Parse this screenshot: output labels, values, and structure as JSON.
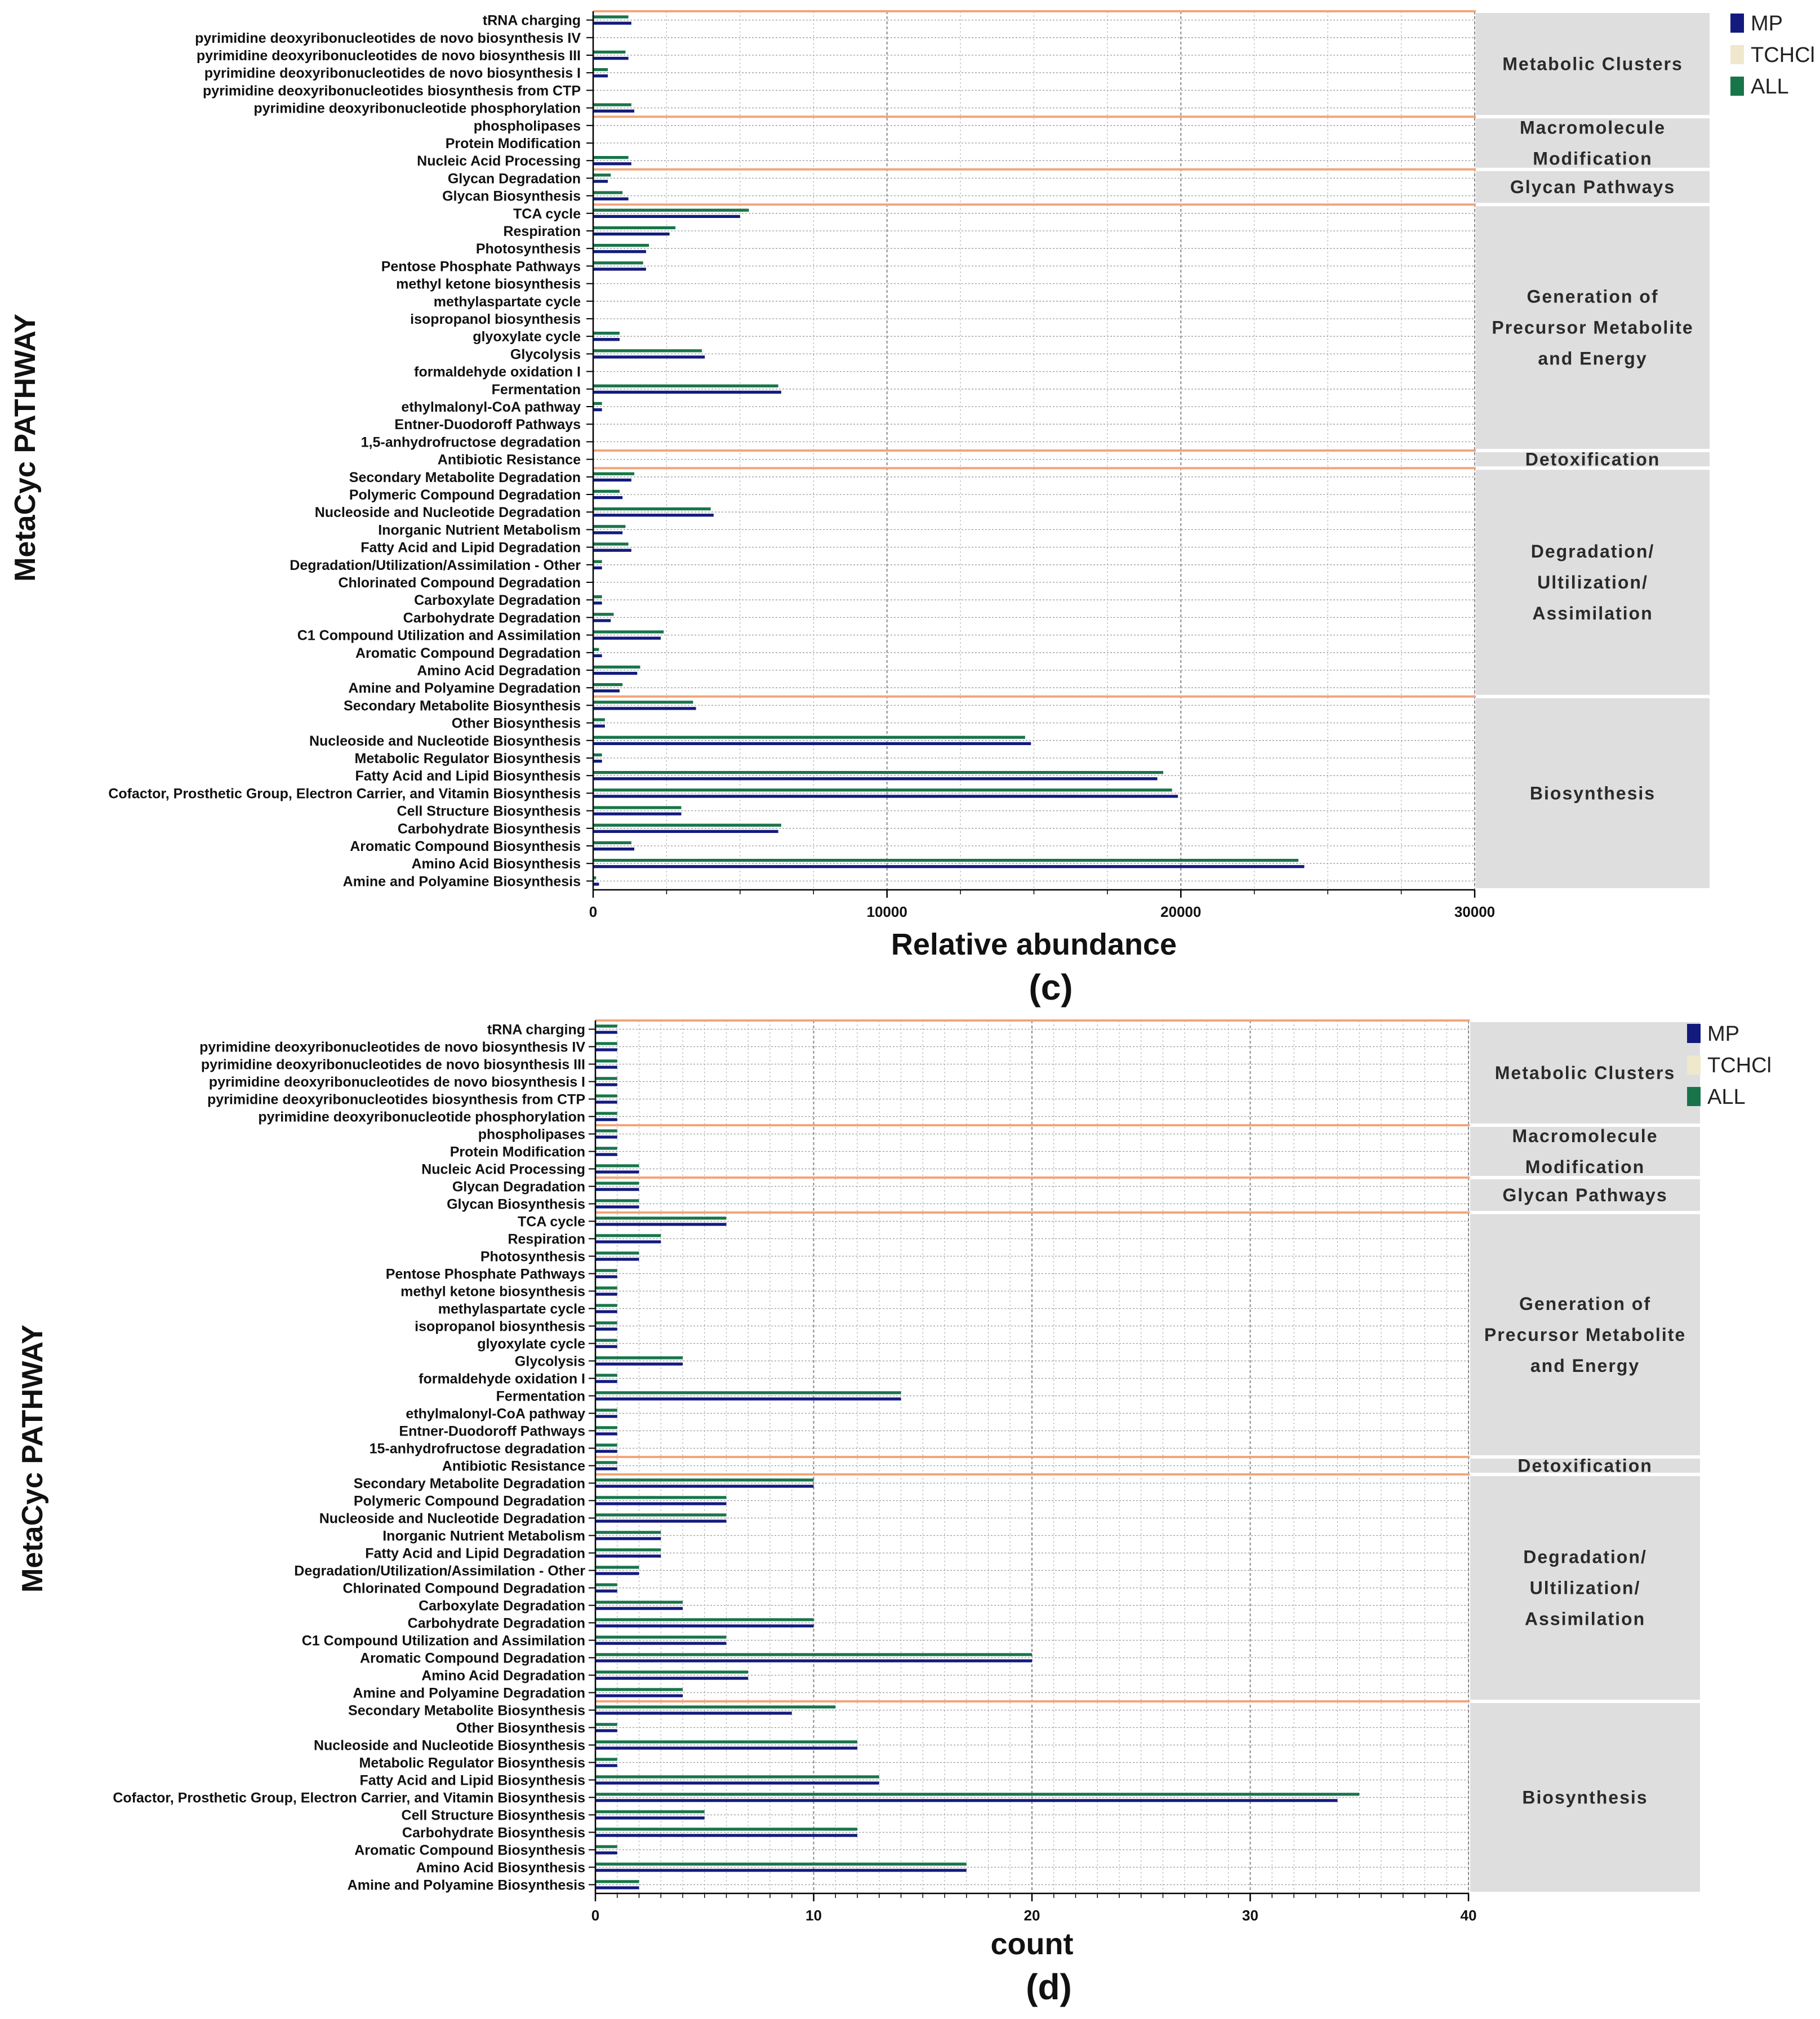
{
  "colors": {
    "MP": "#131a7e",
    "TCHCl": "#efe8cc",
    "ALL": "#18754a",
    "separator": "#f2a57a",
    "grid": "#9a9a9a",
    "group_bg": "#dedede"
  },
  "legend": [
    "MP",
    "TCHCl",
    "ALL"
  ],
  "chart_data": [
    {
      "type": "bar",
      "orientation": "horizontal",
      "panel_label": "(c)",
      "xlabel": "Relative abundance",
      "ylabel": "MetaCyc PATHWAY",
      "xlim": [
        0,
        30000
      ],
      "xticks": [
        "0",
        "10000",
        "20000",
        "30000"
      ],
      "grid": true,
      "legend_position": "top-right",
      "groups": [
        {
          "label": "Metabolic Clusters",
          "lines": [
            "Metabolic Clusters"
          ],
          "start": 0,
          "end": 5
        },
        {
          "label": "Macromolecule Modification",
          "lines": [
            "Macromolecule",
            "Modification"
          ],
          "start": 6,
          "end": 8
        },
        {
          "label": "Glycan Pathways",
          "lines": [
            "Glycan Pathways"
          ],
          "start": 9,
          "end": 10
        },
        {
          "label": "Generation of Precursor Metabolite and Energy",
          "lines": [
            "Generation of",
            "Precursor Metabolite",
            "and Energy"
          ],
          "start": 11,
          "end": 24
        },
        {
          "label": "Detoxification",
          "lines": [
            "Detoxification"
          ],
          "start": 25,
          "end": 25
        },
        {
          "label": "Degradation/ Ultilization/ Assimilation",
          "lines": [
            "Degradation/",
            "Ultilization/",
            "Assimilation"
          ],
          "start": 26,
          "end": 38
        },
        {
          "label": "Biosynthesis",
          "lines": [
            "Biosynthesis"
          ],
          "start": 39,
          "end": 49
        }
      ],
      "categories": [
        "tRNA charging",
        "pyrimidine deoxyribonucleotides de novo biosynthesis IV",
        "pyrimidine deoxyribonucleotides de novo biosynthesis III",
        "pyrimidine deoxyribonucleotides de novo biosynthesis I",
        "pyrimidine deoxyribonucleotides biosynthesis from CTP",
        "pyrimidine deoxyribonucleotide phosphorylation",
        "phospholipases",
        "Protein Modification",
        "Nucleic Acid Processing",
        "Glycan Degradation",
        "Glycan Biosynthesis",
        "TCA cycle",
        "Respiration",
        "Photosynthesis",
        "Pentose Phosphate Pathways",
        "methyl ketone biosynthesis",
        "methylaspartate cycle",
        "isopropanol biosynthesis",
        "glyoxylate cycle",
        "Glycolysis",
        "formaldehyde oxidation I",
        "Fermentation",
        "ethylmalonyl-CoA pathway",
        "Entner-Duodoroff Pathways",
        "1,5-anhydrofructose degradation",
        "Antibiotic Resistance",
        "Secondary Metabolite Degradation",
        "Polymeric Compound Degradation",
        "Nucleoside and Nucleotide Degradation",
        "Inorganic Nutrient Metabolism",
        "Fatty Acid and Lipid Degradation",
        "Degradation/Utilization/Assimilation - Other",
        "Chlorinated Compound Degradation",
        "Carboxylate Degradation",
        "Carbohydrate Degradation",
        "C1 Compound Utilization and Assimilation",
        "Aromatic Compound Degradation",
        "Amino Acid Degradation",
        "Amine and Polyamine Degradation",
        "Secondary Metabolite Biosynthesis",
        "Other Biosynthesis",
        "Nucleoside and Nucleotide Biosynthesis",
        "Metabolic Regulator Biosynthesis",
        "Fatty Acid and Lipid Biosynthesis",
        "Cofactor, Prosthetic Group, Electron Carrier, and Vitamin Biosynthesis",
        "Cell Structure Biosynthesis",
        "Carbohydrate Biosynthesis",
        "Aromatic Compound Biosynthesis",
        "Amino Acid Biosynthesis",
        "Amine and Polyamine Biosynthesis"
      ],
      "series": [
        {
          "name": "ALL",
          "values": [
            1200,
            0,
            1100,
            500,
            0,
            1300,
            0,
            0,
            1200,
            600,
            1000,
            5300,
            2800,
            1900,
            1700,
            0,
            0,
            0,
            900,
            3700,
            0,
            6300,
            300,
            0,
            0,
            0,
            1400,
            900,
            4000,
            1100,
            1200,
            300,
            0,
            300,
            700,
            2400,
            200,
            1600,
            1000,
            3400,
            400,
            14700,
            300,
            19400,
            19700,
            3000,
            6400,
            1300,
            24000,
            100
          ]
        },
        {
          "name": "TCHCl",
          "values": [
            0,
            0,
            0,
            0,
            0,
            0,
            0,
            0,
            0,
            0,
            0,
            0,
            0,
            0,
            0,
            0,
            0,
            0,
            0,
            0,
            0,
            0,
            0,
            0,
            0,
            0,
            0,
            0,
            0,
            0,
            0,
            0,
            0,
            0,
            0,
            0,
            0,
            0,
            0,
            0,
            0,
            0,
            0,
            0,
            0,
            0,
            0,
            0,
            0,
            0
          ]
        },
        {
          "name": "MP",
          "values": [
            1300,
            0,
            1200,
            500,
            0,
            1400,
            0,
            0,
            1300,
            500,
            1200,
            5000,
            2600,
            1800,
            1800,
            0,
            0,
            0,
            900,
            3800,
            0,
            6400,
            300,
            0,
            0,
            0,
            1300,
            1000,
            4100,
            1000,
            1300,
            300,
            0,
            300,
            600,
            2300,
            300,
            1500,
            900,
            3500,
            400,
            14900,
            300,
            19200,
            19900,
            3000,
            6300,
            1400,
            24200,
            200
          ]
        }
      ]
    },
    {
      "type": "bar",
      "orientation": "horizontal",
      "panel_label": "(d)",
      "xlabel": "count",
      "ylabel": "MetaCyc PATHWAY",
      "xlim": [
        0,
        40
      ],
      "xticks": [
        "0",
        "10",
        "20",
        "30",
        "40"
      ],
      "grid": true,
      "legend_position": "top-right",
      "groups": [
        {
          "label": "Metabolic Clusters",
          "lines": [
            "Metabolic Clusters"
          ],
          "start": 0,
          "end": 5
        },
        {
          "label": "Macromolecule Modification",
          "lines": [
            "Macromolecule",
            "Modification"
          ],
          "start": 6,
          "end": 8
        },
        {
          "label": "Glycan Pathways",
          "lines": [
            "Glycan Pathways"
          ],
          "start": 9,
          "end": 10
        },
        {
          "label": "Generation of Precursor Metabolite and Energy",
          "lines": [
            "Generation of",
            "Precursor Metabolite",
            "and Energy"
          ],
          "start": 11,
          "end": 24
        },
        {
          "label": "Detoxification",
          "lines": [
            "Detoxification"
          ],
          "start": 25,
          "end": 25
        },
        {
          "label": "Degradation/ Ultilization/ Assimilation",
          "lines": [
            "Degradation/",
            "Ultilization/",
            "Assimilation"
          ],
          "start": 26,
          "end": 38
        },
        {
          "label": "Biosynthesis",
          "lines": [
            "Biosynthesis"
          ],
          "start": 39,
          "end": 49
        }
      ],
      "categories": [
        "tRNA charging",
        "pyrimidine deoxyribonucleotides de novo biosynthesis IV",
        "pyrimidine deoxyribonucleotides de novo biosynthesis III",
        "pyrimidine deoxyribonucleotides de novo biosynthesis I",
        "pyrimidine deoxyribonucleotides biosynthesis from CTP",
        "pyrimidine deoxyribonucleotide phosphorylation",
        "phospholipases",
        "Protein Modification",
        "Nucleic Acid Processing",
        "Glycan Degradation",
        "Glycan Biosynthesis",
        "TCA cycle",
        "Respiration",
        "Photosynthesis",
        "Pentose Phosphate Pathways",
        "methyl ketone biosynthesis",
        "methylaspartate cycle",
        "isopropanol biosynthesis",
        "glyoxylate cycle",
        "Glycolysis",
        "formaldehyde oxidation I",
        "Fermentation",
        "ethylmalonyl-CoA pathway",
        "Entner-Duodoroff Pathways",
        "15-anhydrofructose degradation",
        "Antibiotic Resistance",
        "Secondary Metabolite Degradation",
        "Polymeric Compound Degradation",
        "Nucleoside and Nucleotide Degradation",
        "Inorganic Nutrient Metabolism",
        "Fatty Acid and Lipid Degradation",
        "Degradation/Utilization/Assimilation - Other",
        "Chlorinated Compound Degradation",
        "Carboxylate Degradation",
        "Carbohydrate Degradation",
        "C1 Compound Utilization and Assimilation",
        "Aromatic Compound Degradation",
        "Amino Acid Degradation",
        "Amine and Polyamine Degradation",
        "Secondary Metabolite Biosynthesis",
        "Other Biosynthesis",
        "Nucleoside and Nucleotide Biosynthesis",
        "Metabolic Regulator Biosynthesis",
        "Fatty Acid and Lipid Biosynthesis",
        "Cofactor, Prosthetic Group, Electron Carrier, and Vitamin Biosynthesis",
        "Cell Structure Biosynthesis",
        "Carbohydrate Biosynthesis",
        "Aromatic Compound Biosynthesis",
        "Amino Acid Biosynthesis",
        "Amine and Polyamine Biosynthesis"
      ],
      "series": [
        {
          "name": "ALL",
          "values": [
            1,
            1,
            1,
            1,
            1,
            1,
            1,
            1,
            2,
            2,
            2,
            6,
            3,
            2,
            1,
            1,
            1,
            1,
            1,
            4,
            1,
            14,
            1,
            1,
            1,
            1,
            10,
            6,
            6,
            3,
            3,
            2,
            1,
            4,
            10,
            6,
            20,
            7,
            4,
            11,
            1,
            12,
            1,
            13,
            35,
            5,
            12,
            1,
            17,
            2
          ]
        },
        {
          "name": "TCHCl",
          "values": [
            0,
            0,
            0,
            0,
            0,
            0,
            0,
            0,
            0,
            0,
            0,
            0,
            0,
            0,
            0,
            0,
            0,
            0,
            0,
            0,
            0,
            0,
            0,
            0,
            0,
            0,
            0,
            0,
            0,
            0,
            0,
            0,
            0,
            0,
            0,
            0,
            0,
            0,
            0,
            0,
            0,
            0,
            0,
            0,
            0,
            0,
            0,
            0,
            0,
            0
          ]
        },
        {
          "name": "MP",
          "values": [
            1,
            1,
            1,
            1,
            1,
            1,
            1,
            1,
            2,
            2,
            2,
            6,
            3,
            2,
            1,
            1,
            1,
            1,
            1,
            4,
            1,
            14,
            1,
            1,
            1,
            1,
            10,
            6,
            6,
            3,
            3,
            2,
            1,
            4,
            10,
            6,
            20,
            7,
            4,
            9,
            1,
            12,
            1,
            13,
            34,
            5,
            12,
            1,
            17,
            2
          ]
        }
      ]
    }
  ]
}
